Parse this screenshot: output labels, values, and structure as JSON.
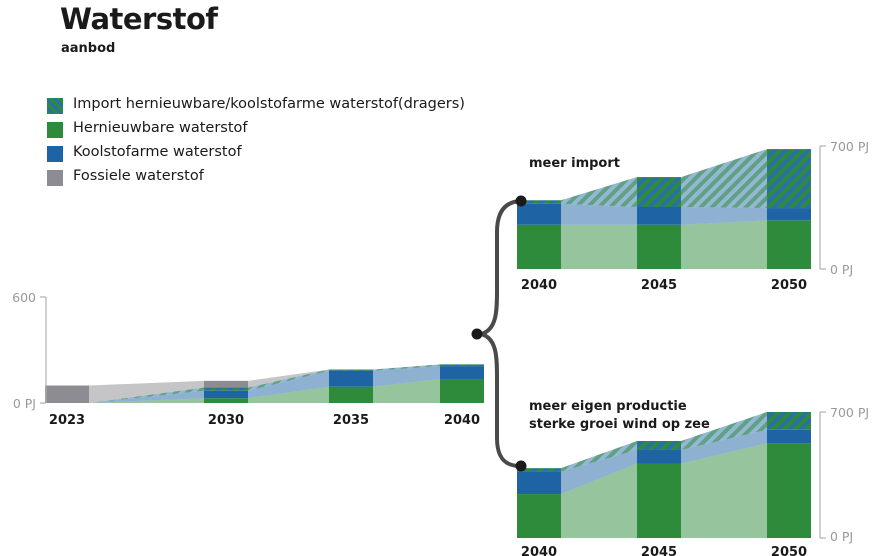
{
  "title": "Waterstof",
  "subtitle": "aanbod",
  "colors": {
    "import": "#2e8b3b",
    "import_stripe": "#2a6fa6",
    "renewable": "#2e8b3b",
    "lowcarbon": "#1e63a3",
    "fossil": "#8c8c92"
  },
  "legend": [
    {
      "key": "import",
      "label": "Import hernieuwbare/koolstofarme waterstof(dragers)",
      "pattern": "striped"
    },
    {
      "key": "renewable",
      "label": "Hernieuwbare waterstof",
      "pattern": "solid"
    },
    {
      "key": "lowcarbon",
      "label": "Koolstofarme waterstof",
      "pattern": "solid"
    },
    {
      "key": "fossil",
      "label": "Fossiele waterstof",
      "pattern": "solid"
    }
  ],
  "chart_data": [
    {
      "id": "main",
      "type": "area",
      "stacked": true,
      "years": [
        "2023",
        "2030",
        "2035",
        "2040"
      ],
      "y_tick_labels": [
        "0 PJ",
        "600"
      ],
      "ylim": [
        0,
        600
      ],
      "series": [
        {
          "name": "Hernieuwbare waterstof",
          "key": "renewable",
          "values": [
            0,
            28,
            95,
            140
          ]
        },
        {
          "name": "Koolstofarme waterstof",
          "key": "lowcarbon",
          "values": [
            0,
            43,
            92,
            75
          ]
        },
        {
          "name": "Import hernieuwbare/koolstofarme waterstof(dragers)",
          "key": "import",
          "values": [
            0,
            19,
            8,
            10
          ]
        },
        {
          "name": "Fossiele waterstof",
          "key": "fossil",
          "values": [
            102,
            39,
            0,
            0
          ]
        }
      ]
    },
    {
      "id": "scenario_import",
      "type": "area",
      "stacked": true,
      "scenario_label": "meer import",
      "years": [
        "2040",
        "2045",
        "2050"
      ],
      "y_tick_labels": [
        "0 PJ",
        "700 PJ"
      ],
      "ylim": [
        0,
        700
      ],
      "series": [
        {
          "name": "Hernieuwbare waterstof",
          "key": "renewable",
          "values": [
            250,
            250,
            275
          ]
        },
        {
          "name": "Koolstofarme waterstof",
          "key": "lowcarbon",
          "values": [
            118,
            100,
            69
          ]
        },
        {
          "name": "Import hernieuwbare/koolstofarme waterstof(dragers)",
          "key": "import",
          "values": [
            20,
            169,
            333
          ]
        }
      ]
    },
    {
      "id": "scenario_own",
      "type": "area",
      "stacked": true,
      "scenario_label_lines": [
        "meer eigen productie",
        "sterke groei wind op zee"
      ],
      "years": [
        "2040",
        "2045",
        "2050"
      ],
      "y_tick_labels": [
        "0 PJ",
        "700 PJ"
      ],
      "ylim": [
        0,
        700
      ],
      "series": [
        {
          "name": "Hernieuwbare waterstof",
          "key": "renewable",
          "values": [
            244,
            414,
            526
          ]
        },
        {
          "name": "Koolstofarme waterstof",
          "key": "lowcarbon",
          "values": [
            125,
            75,
            75
          ]
        },
        {
          "name": "Import hernieuwbare/koolstofarme waterstof(dragers)",
          "key": "import",
          "values": [
            19,
            50,
            99
          ]
        }
      ]
    }
  ]
}
